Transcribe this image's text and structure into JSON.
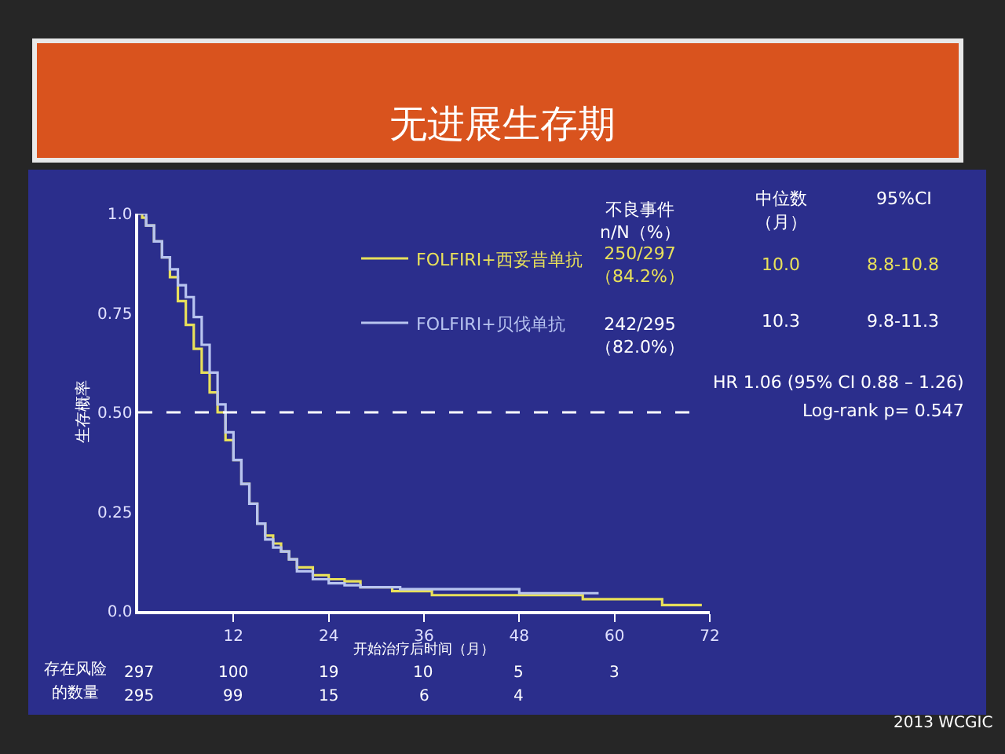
{
  "chart_data": {
    "type": "step",
    "title": "无进展生存期",
    "xlabel": "开始治疗后时间（月）",
    "ylabel": "生存概率",
    "xlim": [
      0,
      72
    ],
    "xticks": [
      12,
      24,
      36,
      48,
      60,
      72
    ],
    "ylim": [
      0,
      1
    ],
    "yticks": [
      {
        "value": 0,
        "label": "0.0"
      },
      0.25,
      {
        "value": 0.5,
        "label": "0.50"
      },
      0.75,
      {
        "value": 1,
        "label": "1.0"
      }
    ],
    "grid": false,
    "legend": "top",
    "marker": "none",
    "line_style": "solid",
    "ref_lines": [
      {
        "axis": "y",
        "value": 0.5,
        "color": "#ffffff",
        "line_style": "dashed"
      }
    ],
    "series": [
      {
        "name": "FOLFIRI+西妥昔单抗",
        "color": "#e8e05a",
        "x": [
          0,
          0.5,
          1,
          2,
          3,
          4,
          5,
          6,
          7,
          8,
          9,
          10,
          11,
          12,
          13,
          14,
          15,
          16,
          17,
          18,
          19,
          20,
          22,
          24,
          26,
          28,
          32,
          37,
          56,
          66,
          71
        ],
        "values": [
          1,
          0.99,
          0.97,
          0.93,
          0.89,
          0.84,
          0.78,
          0.72,
          0.66,
          0.6,
          0.55,
          0.5,
          0.43,
          0.38,
          0.32,
          0.27,
          0.22,
          0.19,
          0.17,
          0.15,
          0.13,
          0.11,
          0.09,
          0.08,
          0.075,
          0.06,
          0.05,
          0.04,
          0.03,
          0.015,
          0.015
        ]
      },
      {
        "name": "FOLFIRI+贝伐单抗",
        "color": "#b8c4f0",
        "x": [
          0,
          1,
          2,
          3,
          4,
          5,
          6,
          7,
          8,
          9,
          10,
          11,
          12,
          13,
          14,
          15,
          16,
          17,
          18,
          19,
          20,
          22,
          24,
          26,
          28,
          33,
          48,
          58
        ],
        "values": [
          1,
          0.97,
          0.93,
          0.89,
          0.86,
          0.82,
          0.79,
          0.74,
          0.67,
          0.6,
          0.52,
          0.45,
          0.38,
          0.32,
          0.27,
          0.22,
          0.18,
          0.16,
          0.15,
          0.13,
          0.1,
          0.08,
          0.07,
          0.065,
          0.06,
          0.055,
          0.045,
          0.045
        ]
      }
    ],
    "annotations": [
      "不良事件\nn/N（%）",
      "中位数",
      "（月）",
      "95%CI",
      "250/297\n（84.2%）",
      "10.0",
      "8.8-10.8",
      "242/295\n（82.0%）",
      "10.3",
      "9.8-11.3",
      "HR 1.06 (95% CI 0.88 – 1.26)",
      "Log-rank p= 0.547",
      "存在风险",
      "的数量",
      "297",
      "100",
      "19",
      "10",
      "5",
      "3",
      "295",
      "99",
      "15",
      "6",
      "4",
      "2013 WCGIC"
    ]
  }
}
